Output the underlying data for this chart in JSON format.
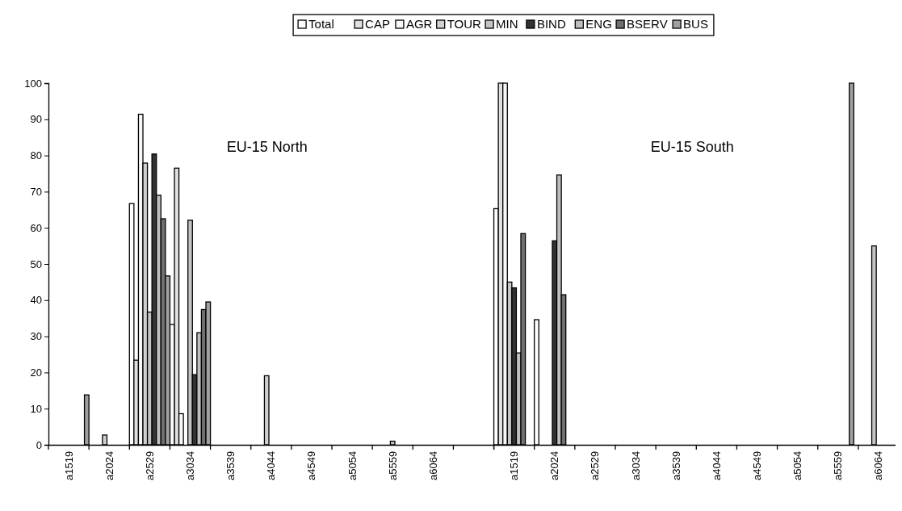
{
  "chart_data": [
    {
      "type": "bar",
      "categories": [
        "a1519",
        "a2024",
        "a2529",
        "a3034",
        "a3539",
        "a4044",
        "a4549",
        "a5054",
        "a5559",
        "a6064",
        null
      ],
      "series": [
        {
          "name": "Total",
          "color": "#ffffff",
          "values": [
            null,
            null,
            66.7,
            33.3,
            null,
            null,
            null,
            null,
            null,
            null,
            null
          ]
        },
        {
          "name": "CAP",
          "color": "#e0e0e0",
          "values": [
            null,
            null,
            23.4,
            76.5,
            null,
            null,
            null,
            null,
            null,
            null,
            null
          ]
        },
        {
          "name": "AGR",
          "color": "#f7f7f7",
          "values": [
            null,
            null,
            91.4,
            8.6,
            null,
            null,
            null,
            null,
            null,
            null,
            null
          ]
        },
        {
          "name": "TOUR",
          "color": "#d0d0d0",
          "values": [
            null,
            2.7,
            77.9,
            null,
            null,
            19.1,
            null,
            null,
            null,
            null,
            null
          ]
        },
        {
          "name": "MIN",
          "color": "#c4c4c4",
          "values": [
            null,
            null,
            36.7,
            62.1,
            null,
            null,
            null,
            null,
            1.0,
            null,
            null
          ]
        },
        {
          "name": "BIND",
          "color": "#333333",
          "values": [
            null,
            null,
            80.4,
            19.4,
            null,
            null,
            null,
            null,
            null,
            null,
            null
          ]
        },
        {
          "name": "ENG",
          "color": "#bfbfbf",
          "values": [
            null,
            null,
            69.0,
            31.0,
            null,
            null,
            null,
            null,
            null,
            null,
            null
          ]
        },
        {
          "name": "BSERV",
          "color": "#707070",
          "values": [
            null,
            null,
            62.5,
            37.4,
            null,
            null,
            null,
            null,
            null,
            null,
            null
          ]
        },
        {
          "name": "BUS",
          "color": "#a0a0a0",
          "values": [
            13.8,
            null,
            46.7,
            39.5,
            null,
            null,
            null,
            null,
            null,
            null,
            null
          ]
        }
      ],
      "ylim": [
        0,
        100
      ],
      "yticks": [
        0,
        10,
        20,
        30,
        40,
        50,
        60,
        70,
        80,
        90,
        100
      ],
      "legend": "top",
      "annotations": [
        "EU-15 North"
      ]
    },
    {
      "type": "bar",
      "categories": [
        "a1519",
        "a2024",
        "a2529",
        "a3034",
        "a3539",
        "a4044",
        "a4549",
        "a5054",
        "a5559",
        "a6064"
      ],
      "series": [
        {
          "color": "#ffffff",
          "values": [
            65.3,
            34.6,
            null,
            null,
            null,
            null,
            null,
            null,
            null,
            null
          ]
        },
        {
          "color": "#e0e0e0",
          "values": [
            100,
            null,
            null,
            null,
            null,
            null,
            null,
            null,
            null,
            null
          ]
        },
        {
          "color": "#f7f7f7",
          "values": [
            100,
            null,
            null,
            null,
            null,
            null,
            null,
            null,
            null,
            null
          ]
        },
        {
          "color": "#c4c4c4",
          "values": [
            45.0,
            null,
            null,
            null,
            null,
            null,
            null,
            null,
            null,
            55
          ]
        },
        {
          "color": "#333333",
          "values": [
            43.4,
            56.4,
            null,
            null,
            null,
            null,
            null,
            null,
            null,
            null
          ]
        },
        {
          "color": "#bfbfbf",
          "values": [
            25.4,
            74.6,
            null,
            null,
            null,
            null,
            null,
            null,
            null,
            null
          ]
        },
        {
          "color": "#707070",
          "values": [
            58.4,
            41.5,
            null,
            null,
            null,
            null,
            null,
            null,
            null,
            null
          ]
        },
        {
          "color": "#a0a0a0",
          "values": [
            null,
            null,
            null,
            null,
            null,
            null,
            null,
            null,
            100,
            null
          ]
        }
      ],
      "ylim": [
        0,
        100
      ],
      "yticks": [
        0,
        10,
        20,
        30,
        40,
        50,
        60,
        70,
        80,
        90,
        100
      ],
      "tick_labels": "x",
      "annotations": [
        "EU-15 South"
      ]
    }
  ]
}
